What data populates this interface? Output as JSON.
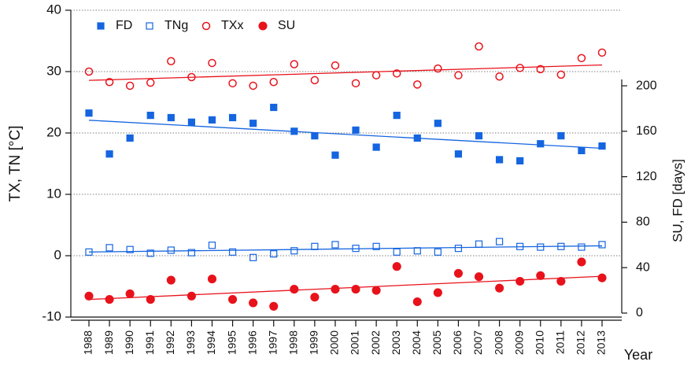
{
  "chart_data": {
    "type": "scatter",
    "x": [
      1988,
      1989,
      1990,
      1991,
      1992,
      1993,
      1994,
      1995,
      1996,
      1997,
      1998,
      1999,
      2000,
      2001,
      2002,
      2003,
      2004,
      2005,
      2006,
      2007,
      2008,
      2009,
      2010,
      2011,
      2012,
      2013
    ],
    "xlim": [
      1988,
      2013
    ],
    "xticks": [
      1988,
      1989,
      1990,
      1991,
      1992,
      1993,
      1994,
      1995,
      1996,
      1997,
      1998,
      1999,
      2000,
      2001,
      2002,
      2003,
      2004,
      2005,
      2006,
      2007,
      2008,
      2009,
      2010,
      2011,
      2012,
      2013
    ],
    "xlabel": "Year",
    "ylabel": "TX, TN [°C]",
    "ylim": [
      -10,
      40
    ],
    "yticks": [
      -10,
      0,
      10,
      20,
      30,
      40
    ],
    "y2label": "SU, FD [days]",
    "y2lim": [
      -3.5,
      266.5
    ],
    "y2ticks": [
      0,
      40,
      80,
      120,
      160,
      200
    ],
    "grid": true,
    "legend": "top-left",
    "trendlines": true,
    "series": [
      {
        "name": "FD",
        "color": "#1565e0",
        "marker": "square",
        "filled": true,
        "axis": "y2",
        "values": [
          176,
          140,
          154,
          174,
          172,
          168,
          170,
          172,
          167,
          181,
          160,
          156,
          139,
          161,
          146,
          174,
          154,
          167,
          140,
          156,
          135,
          134,
          149,
          156,
          143,
          147
        ]
      },
      {
        "name": "TNg",
        "color": "#1565e0",
        "marker": "square",
        "filled": false,
        "values": [
          0.6,
          1.3,
          1.0,
          0.4,
          0.9,
          0.5,
          1.7,
          0.6,
          -0.3,
          0.3,
          0.8,
          1.5,
          1.8,
          1.2,
          1.5,
          0.6,
          0.8,
          0.6,
          1.2,
          1.9,
          2.3,
          1.5,
          1.4,
          1.5,
          1.4,
          1.8
        ]
      },
      {
        "name": "TXx",
        "color": "#e8121b",
        "marker": "circle",
        "filled": false,
        "values": [
          30.0,
          28.3,
          27.7,
          28.2,
          31.7,
          29.1,
          31.4,
          28.1,
          27.7,
          28.3,
          31.2,
          28.6,
          31.0,
          28.1,
          29.4,
          29.7,
          27.9,
          30.5,
          29.4,
          34.1,
          29.2,
          30.6,
          30.4,
          29.5,
          32.2,
          33.1
        ]
      },
      {
        "name": "SU",
        "color": "#e8121b",
        "marker": "circle",
        "filled": true,
        "axis": "y2",
        "values": [
          15,
          12,
          17,
          12,
          29,
          15,
          30,
          12,
          9,
          6,
          21,
          14,
          21,
          21,
          20,
          41,
          10,
          18,
          35,
          32,
          22,
          28,
          33,
          28,
          45,
          31
        ]
      }
    ]
  }
}
